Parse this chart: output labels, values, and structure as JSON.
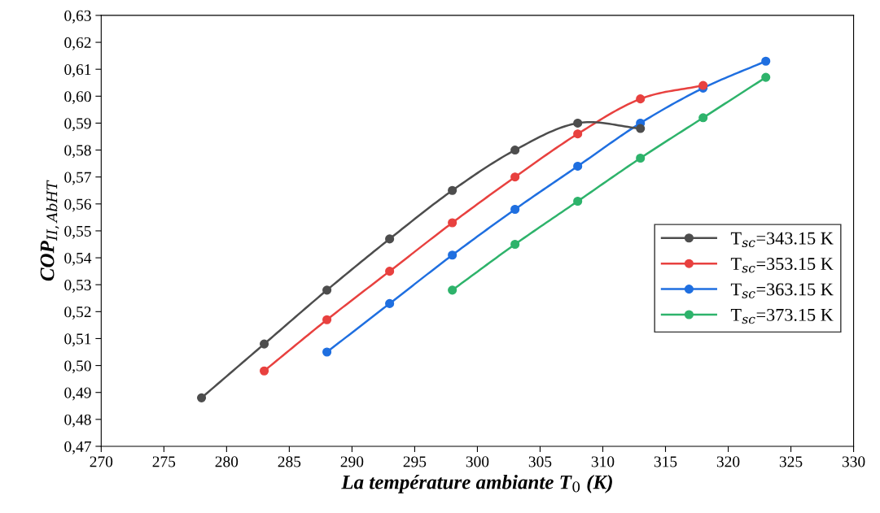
{
  "chart_data": {
    "type": "line",
    "xlabel": "La température ambiante T$_{0}$ (K)",
    "ylabel": "COP$_{II,AbHT}$",
    "xlim": [
      270,
      330
    ],
    "xticks": [
      270,
      275,
      280,
      285,
      290,
      295,
      300,
      305,
      310,
      315,
      320,
      325,
      330
    ],
    "ylim": [
      0.47,
      0.63
    ],
    "yticks": [
      {
        "value": 0.47,
        "label": "0,47"
      },
      {
        "value": 0.48,
        "label": "0,48"
      },
      {
        "value": 0.49,
        "label": "0,49"
      },
      {
        "value": 0.5,
        "label": "0,50"
      },
      {
        "value": 0.51,
        "label": "0,51"
      },
      {
        "value": 0.52,
        "label": "0,52"
      },
      {
        "value": 0.53,
        "label": "0,53"
      },
      {
        "value": 0.54,
        "label": "0,54"
      },
      {
        "value": 0.55,
        "label": "0,55"
      },
      {
        "value": 0.56,
        "label": "0,56"
      },
      {
        "value": 0.57,
        "label": "0,57"
      },
      {
        "value": 0.58,
        "label": "0,58"
      },
      {
        "value": 0.59,
        "label": "0,59"
      },
      {
        "value": 0.6,
        "label": "0,60"
      },
      {
        "value": 0.61,
        "label": "0,61"
      },
      {
        "value": 0.62,
        "label": "0,62"
      },
      {
        "value": 0.63,
        "label": "0,63"
      }
    ],
    "grid": false,
    "legend": "right",
    "marker": "circle",
    "line_style": "solid",
    "series": [
      {
        "name": "T$_{sc}$=343.15 K",
        "color": "#4d4d4d",
        "x": [
          278,
          283,
          288,
          293,
          298,
          303,
          308,
          313
        ],
        "values": [
          0.488,
          0.508,
          0.528,
          0.547,
          0.565,
          0.58,
          0.59,
          0.588
        ]
      },
      {
        "name": "T$_{sc}$=353.15 K",
        "color": "#e8413f",
        "x": [
          283,
          288,
          293,
          298,
          303,
          308,
          313,
          318
        ],
        "values": [
          0.498,
          0.517,
          0.535,
          0.553,
          0.57,
          0.586,
          0.599,
          0.604
        ]
      },
      {
        "name": "T$_{sc}$=363.15 K",
        "color": "#1f6fe0",
        "x": [
          288,
          293,
          298,
          303,
          308,
          313,
          318,
          323
        ],
        "values": [
          0.505,
          0.523,
          0.541,
          0.558,
          0.574,
          0.59,
          0.603,
          0.613
        ]
      },
      {
        "name": "T$_{sc}$=373.15 K",
        "color": "#2eb36b",
        "x": [
          298,
          303,
          308,
          313,
          318,
          323
        ],
        "values": [
          0.528,
          0.545,
          0.561,
          0.577,
          0.592,
          0.607
        ]
      }
    ]
  }
}
